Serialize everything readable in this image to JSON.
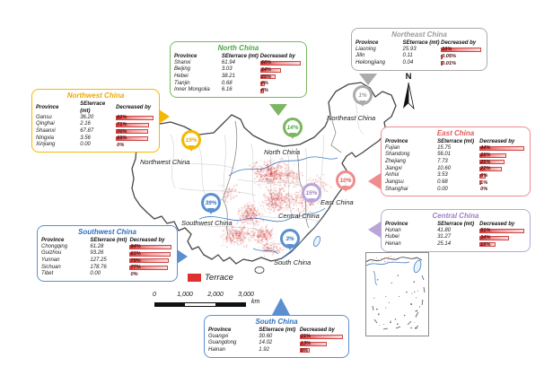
{
  "columns": [
    "Province",
    "SEterrace (mt)",
    "Decreased by"
  ],
  "legend": {
    "terrace": "Terrace"
  },
  "scalebar": {
    "ticks": [
      "0",
      "1,000",
      "2,000",
      "3,000"
    ],
    "unit": "km"
  },
  "compass": "N",
  "bar_colors": {
    "fill": "#E23B3B",
    "border": "#CC4444",
    "text": "#4F0C0C"
  },
  "regions": {
    "northwest": {
      "title": "Northwest China",
      "map_label": "Northwest China",
      "pin": "19%",
      "accent": "#F5B800",
      "title_color": "#EFA700",
      "rows": [
        {
          "province": "Gansu",
          "se": "36.20",
          "pct": "82%",
          "pct_num": 82
        },
        {
          "province": "Qinghai",
          "se": "2.16",
          "pct": "71%",
          "pct_num": 71
        },
        {
          "province": "Shaanxi",
          "se": "67.87",
          "pct": "70%",
          "pct_num": 70
        },
        {
          "province": "Ningxia",
          "se": "3.56",
          "pct": "69%",
          "pct_num": 69
        },
        {
          "province": "Xinjiang",
          "se": "0.00",
          "pct": "0%",
          "pct_num": 0
        }
      ]
    },
    "north": {
      "title": "North China",
      "map_label": "North China",
      "pin": "14%",
      "accent": "#7CB661",
      "title_color": "#4CA546",
      "rows": [
        {
          "province": "Shanxi",
          "se": "61.94",
          "pct": "66%",
          "pct_num": 66
        },
        {
          "province": "Beijing",
          "se": "3.03",
          "pct": "34%",
          "pct_num": 34
        },
        {
          "province": "Hebei",
          "se": "38.21",
          "pct": "25%",
          "pct_num": 25
        },
        {
          "province": "Tianjin",
          "se": "0.68",
          "pct": "8%",
          "pct_num": 8
        },
        {
          "province": "Inner Mongolia",
          "se": "6.16",
          "pct": "6%",
          "pct_num": 6
        }
      ]
    },
    "northeast": {
      "title": "Northeast China",
      "map_label": "Northeast China",
      "pin": "1%",
      "accent": "#ABABAB",
      "title_color": "#9B9B9B",
      "rows": [
        {
          "province": "Liaoning",
          "se": "25.93",
          "pct": "10%",
          "pct_num": 10
        },
        {
          "province": "Jilin",
          "se": "0.11",
          "pct": "0.05%",
          "pct_num": 0.05
        },
        {
          "province": "Heilongjiang",
          "se": "0.04",
          "pct": "0.01%",
          "pct_num": 0.01
        }
      ]
    },
    "east": {
      "title": "East China",
      "map_label": "East China",
      "pin": "10%",
      "accent": "#F08C8C",
      "title_color": "#E25757",
      "rows": [
        {
          "province": "Fujian",
          "se": "15.75",
          "pct": "44%",
          "pct_num": 44
        },
        {
          "province": "Shandong",
          "se": "56.01",
          "pct": "26%",
          "pct_num": 26
        },
        {
          "province": "Zhejiang",
          "se": "7.73",
          "pct": "25%",
          "pct_num": 25
        },
        {
          "province": "Jiangxi",
          "se": "10.60",
          "pct": "22%",
          "pct_num": 22
        },
        {
          "province": "Anhui",
          "se": "3.53",
          "pct": "6%",
          "pct_num": 6
        },
        {
          "province": "Jiangsu",
          "se": "0.68",
          "pct": "1%",
          "pct_num": 1
        },
        {
          "province": "Shanghai",
          "se": "0.00",
          "pct": "0%",
          "pct_num": 0
        }
      ]
    },
    "central": {
      "title": "Central China",
      "map_label": "Central China",
      "pin": "15%",
      "accent": "#B9A6D8",
      "title_color": "#9B7FC4",
      "rows": [
        {
          "province": "Hunan",
          "se": "41.80",
          "pct": "51%",
          "pct_num": 51
        },
        {
          "province": "Hubei",
          "se": "31.27",
          "pct": "34%",
          "pct_num": 34
        },
        {
          "province": "Henan",
          "se": "25.14",
          "pct": "18%",
          "pct_num": 18
        }
      ]
    },
    "southwest": {
      "title": "Southwest China",
      "map_label": "Southwest China",
      "pin": "39%",
      "accent": "#5B8FD0",
      "title_color": "#2F6FBE",
      "rows": [
        {
          "province": "Chongqing",
          "se": "61.28",
          "pct": "84%",
          "pct_num": 84
        },
        {
          "province": "Guizhou",
          "se": "93.26",
          "pct": "83%",
          "pct_num": 83
        },
        {
          "province": "Yunnan",
          "se": "127.25",
          "pct": "79%",
          "pct_num": 79
        },
        {
          "province": "Sichuan",
          "se": "178.76",
          "pct": "77%",
          "pct_num": 77
        },
        {
          "province": "Tibet",
          "se": "0.00",
          "pct": "0%",
          "pct_num": 0
        }
      ]
    },
    "south": {
      "title": "South China",
      "map_label": "South China",
      "pin": "3%",
      "accent": "#5B8FD0",
      "title_color": "#2F6FBE",
      "rows": [
        {
          "province": "Guangxi",
          "se": "30.60",
          "pct": "21%",
          "pct_num": 21
        },
        {
          "province": "Guangdong",
          "se": "14.02",
          "pct": "13%",
          "pct_num": 13
        },
        {
          "province": "Hainan",
          "se": "1.92",
          "pct": "5%",
          "pct_num": 5
        }
      ]
    }
  }
}
